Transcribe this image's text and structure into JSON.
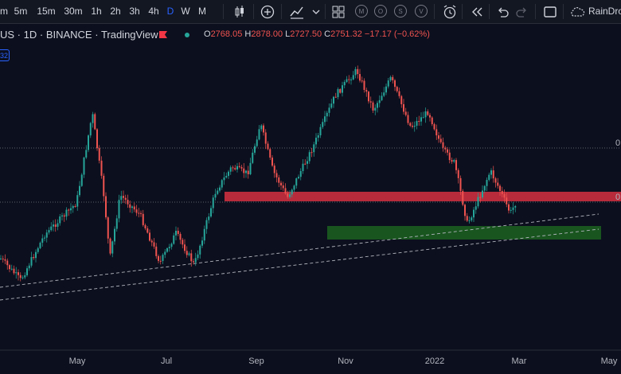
{
  "toolbar": {
    "intervals": [
      "m",
      "5m",
      "15m",
      "30m",
      "1h",
      "2h",
      "3h",
      "4h",
      "D",
      "W",
      "M"
    ],
    "active_interval": "D",
    "compare_letters": [
      "M",
      "O",
      "S",
      "V"
    ],
    "user_label": "RainDro"
  },
  "symbol": {
    "name": "US",
    "interval": "1D",
    "exchange": "BINANCE",
    "source": "TradingView",
    "open_label": "O",
    "open": "2768.05",
    "high_label": "H",
    "high": "2878.00",
    "low_label": "L",
    "low": "2727.50",
    "close_label": "C",
    "close": "2751.32",
    "change": "−17.17 (−0.62%)",
    "badge": "32"
  },
  "axis": {
    "months": [
      "May",
      "Jul",
      "Sep",
      "Nov",
      "2022",
      "Mar",
      "May"
    ],
    "right_labels": [
      "0.",
      "0"
    ]
  },
  "colors": {
    "background": "#0c0f1d",
    "up": "#26a69a",
    "down": "#ef5350",
    "resistance_zone": "#f23645",
    "support_zone": "#1b5e20",
    "accent": "#2962ff"
  }
}
